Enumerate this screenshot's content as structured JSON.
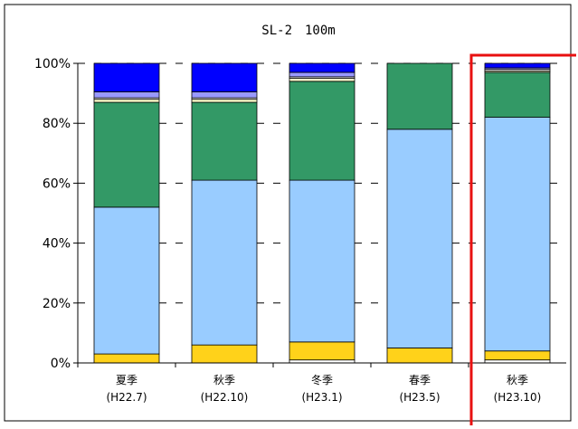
{
  "chart_data": {
    "type": "bar",
    "stacked": true,
    "title": "SL-2　100m",
    "categories": [
      {
        "season": "夏季",
        "period": "(H22.7)"
      },
      {
        "season": "秋季",
        "period": "(H22.10)"
      },
      {
        "season": "冬季",
        "period": "(H23.1)"
      },
      {
        "season": "春季",
        "period": "(H23.5)"
      },
      {
        "season": "秋季",
        "period": "(H23.10)"
      }
    ],
    "ylim": [
      0,
      100
    ],
    "yticks": [
      "0%",
      "20%",
      "40%",
      "60%",
      "80%",
      "100%"
    ],
    "grid": "dashed-horizontal",
    "highlight": {
      "category_index": 4,
      "color": "#e81010"
    },
    "series": [
      {
        "color": "#ffffff",
        "values": [
          0,
          0,
          1,
          0,
          1
        ]
      },
      {
        "color": "#ffd21a",
        "values": [
          3,
          6,
          6,
          5,
          3
        ]
      },
      {
        "color": "#99ccff",
        "values": [
          49,
          55,
          54,
          73,
          78
        ]
      },
      {
        "color": "#339966",
        "values": [
          35,
          26,
          33,
          22,
          15
        ]
      },
      {
        "color": "#ffffcc",
        "values": [
          1,
          1,
          1,
          0,
          0.5
        ]
      },
      {
        "color": "#ffffff",
        "values": [
          0.5,
          0.5,
          0.5,
          0,
          0.5
        ]
      },
      {
        "color": "#9999ff",
        "values": [
          2,
          2,
          1.5,
          0,
          0.5
        ]
      },
      {
        "color": "#0000ff",
        "values": [
          9.5,
          9.5,
          3,
          0,
          1.5
        ]
      }
    ]
  }
}
